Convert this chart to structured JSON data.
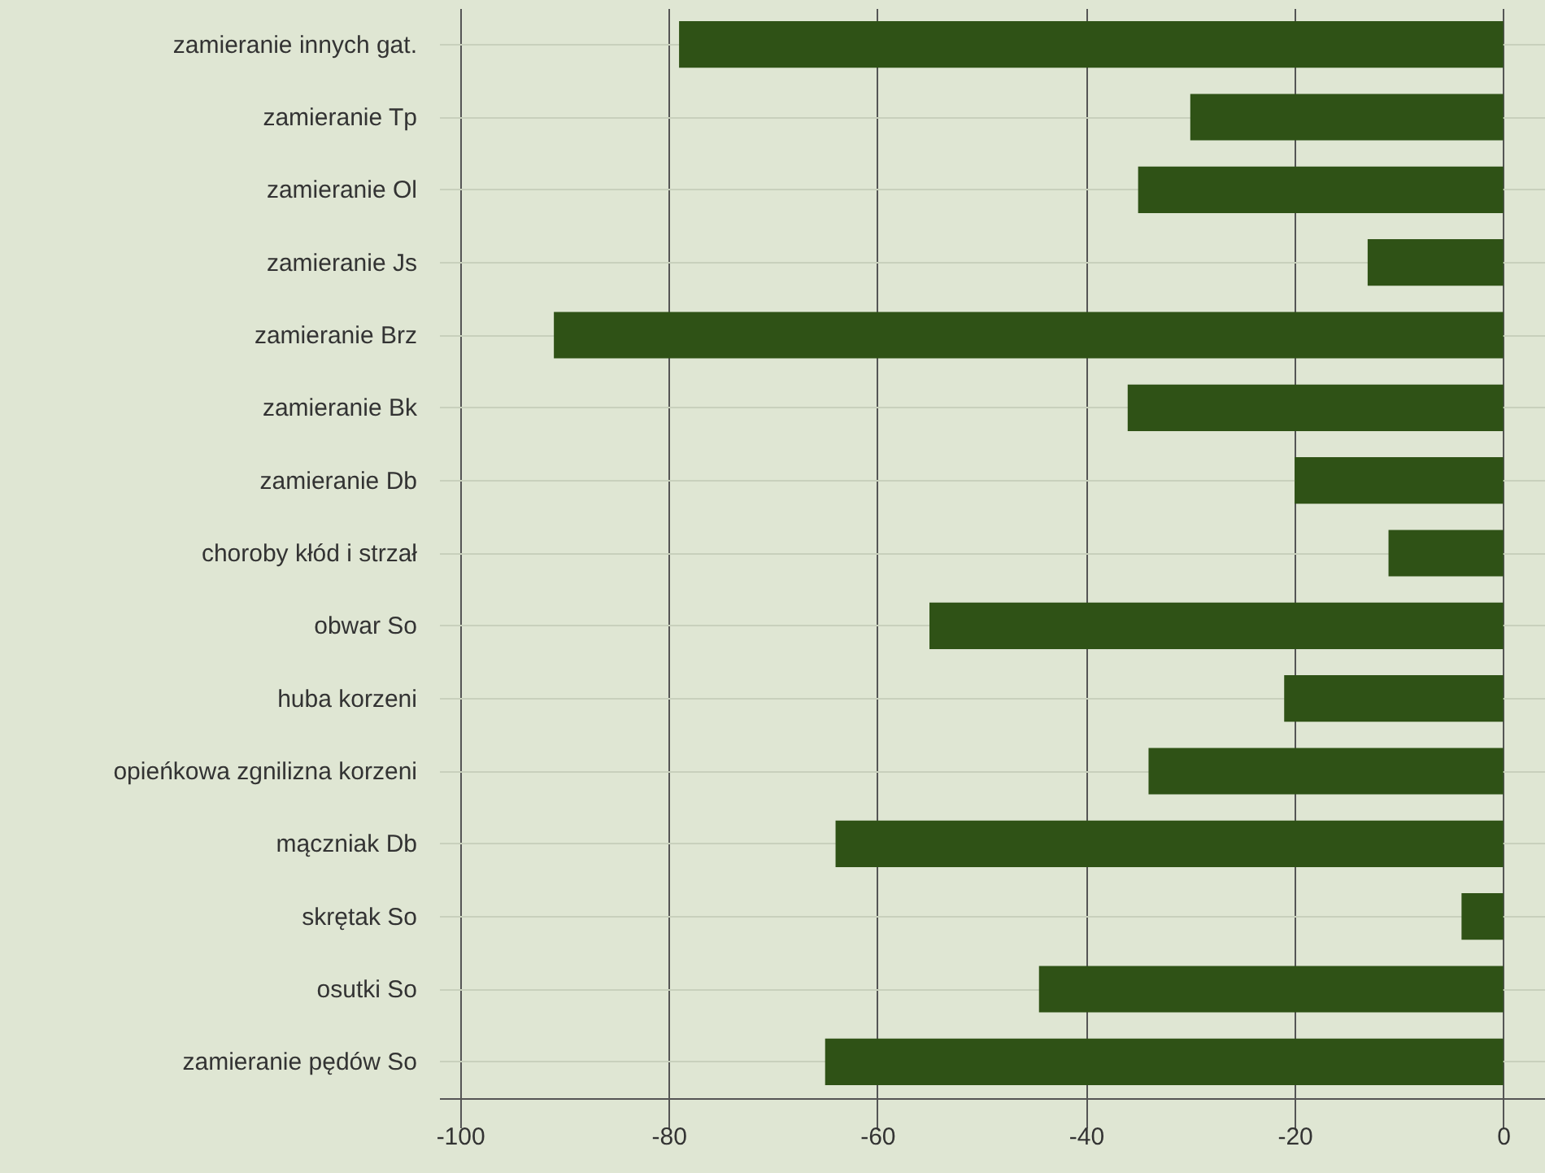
{
  "chart_data": {
    "type": "bar",
    "orientation": "horizontal",
    "categories": [
      "zamieranie innych gat.",
      "zamieranie Tp",
      "zamieranie Ol",
      "zamieranie Js",
      "zamieranie Brz",
      "zamieranie Bk",
      "zamieranie Db",
      "choroby kłód i strzał",
      "obwar So",
      "huba korzeni",
      "opieńkowa zgnilizna korzeni",
      "mączniak Db",
      "skrętak So",
      "osutki So",
      "zamieranie pędów So"
    ],
    "values": [
      -79,
      -30,
      -35,
      -13,
      -91,
      -36,
      -20,
      -11,
      -55,
      -21,
      -34,
      -64,
      -4,
      -44.5,
      -65
    ],
    "color": "#2f5216",
    "xlim": [
      -102,
      4
    ],
    "xticks": [
      -100,
      -80,
      -60,
      -40,
      -20,
      0
    ],
    "grid": true
  }
}
